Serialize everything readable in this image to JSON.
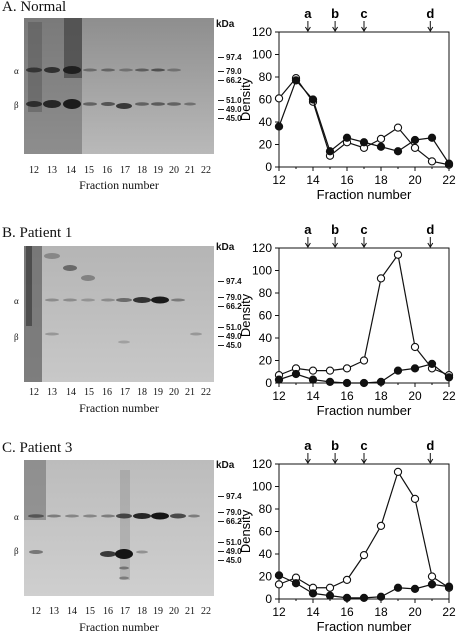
{
  "panels": [
    {
      "label": "A. Normal",
      "kda_label": "kDa",
      "alpha_label": "α",
      "beta_label": "β",
      "markers": [
        "97.4",
        "79.0",
        "66.2",
        "51.0",
        "49.0",
        "45.0"
      ],
      "lanes": [
        "12",
        "13",
        "14",
        "15",
        "16",
        "17",
        "18",
        "19",
        "20",
        "21",
        "22"
      ],
      "gel_xlabel": "Fraction number"
    },
    {
      "label": "B. Patient 1",
      "kda_label": "kDa",
      "alpha_label": "α",
      "beta_label": "β",
      "markers": [
        "97.4",
        "79.0",
        "66.2",
        "51.0",
        "49.0",
        "45.0"
      ],
      "lanes": [
        "12",
        "13",
        "14",
        "15",
        "16",
        "17",
        "18",
        "19",
        "20",
        "21",
        "22"
      ],
      "gel_xlabel": "Fraction number"
    },
    {
      "label": "C. Patient 3",
      "kda_label": "kDa",
      "alpha_label": "α",
      "beta_label": "β",
      "markers": [
        "97.4",
        "79.0",
        "66.2",
        "51.0",
        "49.0",
        "45.0"
      ],
      "lanes": [
        "12",
        "13",
        "14",
        "15",
        "16",
        "17",
        "18",
        "19",
        "20",
        "21",
        "22"
      ],
      "gel_xlabel": "Fraction number"
    }
  ],
  "chart_data": [
    {
      "type": "line",
      "xlabel": "Fraction number",
      "ylabel": "Density",
      "xlim": [
        12,
        22
      ],
      "ylim": [
        0,
        120
      ],
      "xticks": [
        12,
        14,
        16,
        18,
        20,
        22
      ],
      "yticks": [
        0,
        20,
        40,
        60,
        80,
        100,
        120
      ],
      "top_annotations": [
        {
          "text": "a",
          "x": 13.7
        },
        {
          "text": "b",
          "x": 15.3
        },
        {
          "text": "c",
          "x": 17.0
        },
        {
          "text": "d",
          "x": 20.9
        }
      ],
      "x": [
        12,
        13,
        14,
        15,
        16,
        17,
        18,
        19,
        20,
        21,
        22
      ],
      "series": [
        {
          "marker": "open-circle",
          "values": [
            61,
            79,
            58,
            10,
            22,
            17,
            25,
            35,
            17,
            5,
            2
          ]
        },
        {
          "marker": "filled-circle",
          "values": [
            36,
            77,
            60,
            14,
            26,
            22,
            18,
            14,
            24,
            26,
            3
          ]
        }
      ],
      "grid": false
    },
    {
      "type": "line",
      "xlabel": "Fraction number",
      "ylabel": "Density",
      "xlim": [
        12,
        22
      ],
      "ylim": [
        0,
        120
      ],
      "xticks": [
        12,
        14,
        16,
        18,
        20,
        22
      ],
      "yticks": [
        0,
        20,
        40,
        60,
        80,
        100,
        120
      ],
      "top_annotations": [
        {
          "text": "a",
          "x": 13.7
        },
        {
          "text": "b",
          "x": 15.3
        },
        {
          "text": "c",
          "x": 17.0
        },
        {
          "text": "d",
          "x": 20.9
        }
      ],
      "x": [
        12,
        13,
        14,
        15,
        16,
        17,
        18,
        19,
        20,
        21,
        22
      ],
      "series": [
        {
          "marker": "open-circle",
          "values": [
            7,
            13,
            11,
            11,
            13,
            20,
            93,
            114,
            32,
            13,
            7
          ]
        },
        {
          "marker": "filled-circle",
          "values": [
            3,
            8,
            3,
            1,
            0,
            0,
            1,
            11,
            13,
            17,
            5
          ]
        }
      ],
      "grid": false
    },
    {
      "type": "line",
      "xlabel": "Fraction number",
      "ylabel": "Density",
      "xlim": [
        12,
        22
      ],
      "ylim": [
        0,
        120
      ],
      "xticks": [
        12,
        14,
        16,
        18,
        20,
        22
      ],
      "yticks": [
        0,
        20,
        40,
        60,
        80,
        100,
        120
      ],
      "top_annotations": [
        {
          "text": "a",
          "x": 13.7
        },
        {
          "text": "b",
          "x": 15.3
        },
        {
          "text": "c",
          "x": 17.0
        },
        {
          "text": "d",
          "x": 20.9
        }
      ],
      "x": [
        12,
        13,
        14,
        15,
        16,
        17,
        18,
        19,
        20,
        21,
        22
      ],
      "series": [
        {
          "marker": "open-circle",
          "values": [
            13,
            19,
            10,
            10,
            17,
            39,
            65,
            113,
            89,
            20,
            10
          ]
        },
        {
          "marker": "filled-circle",
          "values": [
            21,
            14,
            5,
            3,
            1,
            1,
            2,
            10,
            9,
            13,
            11
          ]
        }
      ],
      "grid": false
    }
  ]
}
